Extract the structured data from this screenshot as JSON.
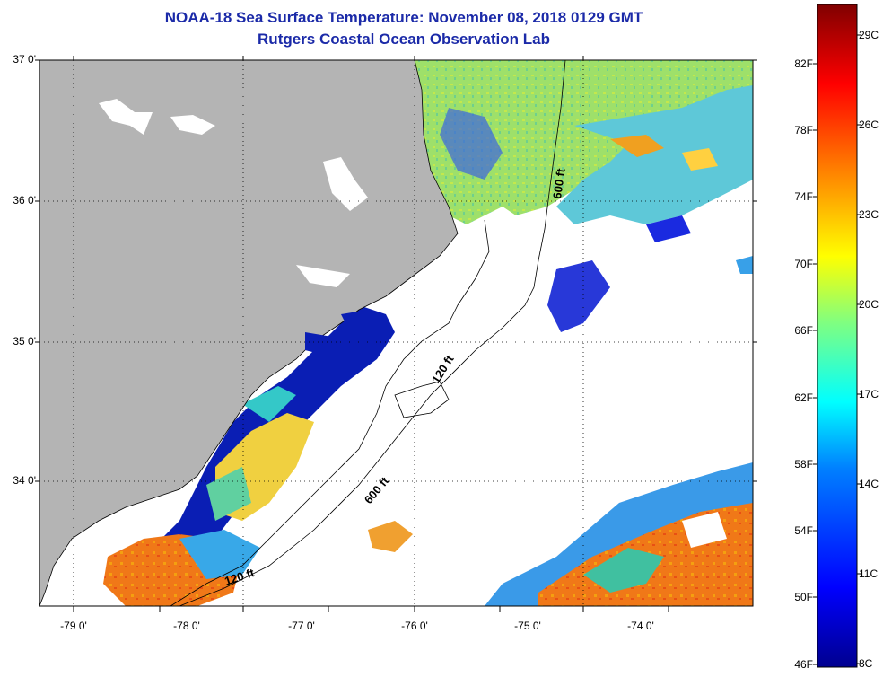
{
  "header": {
    "title": "NOAA-18 Sea Surface Temperature:  November 08, 2018 0129 GMT",
    "subtitle": "Rutgers Coastal Ocean Observation Lab"
  },
  "map": {
    "lat_labels": [
      "37 0'",
      "36 0'",
      "35 0'",
      "34 0'"
    ],
    "lon_labels": [
      "-79 0'",
      "-78 0'",
      "-77 0'",
      "-76 0'",
      "-75 0'",
      "-74 0'"
    ],
    "contours": [
      "600 ft",
      "120 ft",
      "600 ft",
      "120 ft"
    ],
    "colors": {
      "land": "#b4b4b4",
      "cloud": "#ffffff"
    }
  },
  "colorbar": {
    "fahrenheit": [
      "82F",
      "78F",
      "74F",
      "70F",
      "66F",
      "62F",
      "58F",
      "54F",
      "50F",
      "46F"
    ],
    "celsius": [
      "29C",
      "26C",
      "23C",
      "20C",
      "17C",
      "14C",
      "11C",
      "8C"
    ],
    "range_f": [
      46,
      86
    ],
    "colors": [
      "#00008f",
      "#0000ff",
      "#0080ff",
      "#00ffff",
      "#80ff80",
      "#ffff00",
      "#ff8000",
      "#ff0000",
      "#800000"
    ]
  }
}
